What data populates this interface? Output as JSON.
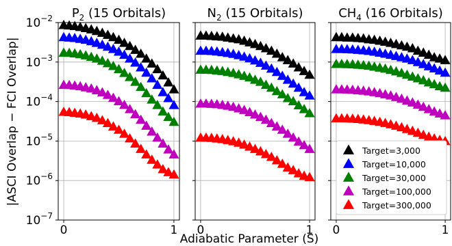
{
  "chart_data": {
    "type": "scatter",
    "ylabel": "|ASCI Overlap − FCI Overlap|",
    "xlabel": "Adiabatic Parameter (S)",
    "yscale": "log",
    "ylim": [
      1e-07,
      0.01
    ],
    "xlim": [
      -0.05,
      1.05
    ],
    "ytick_labels": [
      {
        "base": "10",
        "exp": "−2"
      },
      {
        "base": "10",
        "exp": "−3"
      },
      {
        "base": "10",
        "exp": "−4"
      },
      {
        "base": "10",
        "exp": "−5"
      },
      {
        "base": "10",
        "exp": "−6"
      },
      {
        "base": "10",
        "exp": "−7"
      }
    ],
    "ytick_values": [
      0.01,
      0.001,
      0.0001,
      1e-05,
      1e-06,
      1e-07
    ],
    "xtick_labels": [
      "0",
      "1"
    ],
    "xtick_values": [
      0,
      1
    ],
    "grid": true,
    "marker": "triangle",
    "legend": {
      "location": "lower-right of third panel",
      "entries": [
        {
          "label": "Target=3,000",
          "color": "#000000"
        },
        {
          "label": "Target=10,000",
          "color": "#0000ff"
        },
        {
          "label": "Target=30,000",
          "color": "#008000"
        },
        {
          "label": "Target=100,000",
          "color": "#bf00bf"
        },
        {
          "label": "Target=300,000",
          "color": "#ff0000"
        }
      ]
    },
    "x": [
      0,
      0.05,
      0.1,
      0.15,
      0.2,
      0.25,
      0.3,
      0.35,
      0.4,
      0.45,
      0.5,
      0.55,
      0.6,
      0.65,
      0.7,
      0.75,
      0.8,
      0.85,
      0.9,
      0.95,
      1.0
    ],
    "panels": [
      {
        "title": {
          "pre": "P",
          "sub": "2",
          "post": " (15 Orbitals)"
        },
        "series": [
          {
            "name": "Target=3,000",
            "values": [
              0.0085,
              0.0083,
              0.008,
              0.0076,
              0.0071,
              0.0066,
              0.006,
              0.0054,
              0.0048,
              0.0042,
              0.0036,
              0.003,
              0.0025,
              0.002,
              0.0016,
              0.0012,
              0.0009,
              0.00065,
              0.00045,
              0.0003,
              0.0002
            ]
          },
          {
            "name": "Target=10,000",
            "values": [
              0.0042,
              0.0041,
              0.004,
              0.0038,
              0.0036,
              0.0033,
              0.003,
              0.0027,
              0.0024,
              0.0021,
              0.0018,
              0.0015,
              0.0012,
              0.00095,
              0.00072,
              0.00053,
              0.00038,
              0.00026,
              0.00017,
              0.00012,
              8e-05
            ]
          },
          {
            "name": "Target=30,000",
            "values": [
              0.0017,
              0.00168,
              0.00163,
              0.00155,
              0.00145,
              0.00133,
              0.0012,
              0.00106,
              0.00092,
              0.00078,
              0.00065,
              0.00052,
              0.00041,
              0.00031,
              0.00023,
              0.00016,
              0.00011,
              8e-05,
              5.5e-05,
              4e-05,
              3e-05
            ]
          },
          {
            "name": "Target=100,000",
            "values": [
              0.00026,
              0.000258,
              0.00025,
              0.00024,
              0.000225,
              0.00021,
              0.00019,
              0.000168,
              0.000145,
              0.000122,
              0.0001,
              8.1e-05,
              6.3e-05,
              4.7e-05,
              3.4e-05,
              2.4e-05,
              1.7e-05,
              1.2e-05,
              8.5e-06,
              6e-06,
              4.5e-06
            ]
          },
          {
            "name": "Target=300,000",
            "values": [
              5.4e-05,
              5.3e-05,
              5.1e-05,
              4.9e-05,
              4.6e-05,
              4.2e-05,
              3.8e-05,
              3.3e-05,
              2.8e-05,
              2.3e-05,
              1.9e-05,
              1.5e-05,
              1.15e-05,
              8.5e-06,
              6.2e-06,
              4.5e-06,
              3.3e-06,
              2.5e-06,
              1.9e-06,
              1.6e-06,
              1.4e-06
            ]
          }
        ]
      },
      {
        "title": {
          "pre": "N",
          "sub": "2",
          "post": " (15 Orbitals)"
        },
        "series": [
          {
            "name": "Target=3,000",
            "values": [
              0.0046,
              0.0046,
              0.0045,
              0.0044,
              0.0043,
              0.0041,
              0.0039,
              0.0037,
              0.0034,
              0.0031,
              0.0028,
              0.0025,
              0.0022,
              0.0019,
              0.0016,
              0.0013,
              0.0011,
              0.0009,
              0.00072,
              0.00058,
              0.00047
            ]
          },
          {
            "name": "Target=10,000",
            "values": [
              0.0019,
              0.0019,
              0.00187,
              0.00182,
              0.00175,
              0.00167,
              0.00158,
              0.00147,
              0.00135,
              0.00122,
              0.00108,
              0.00094,
              0.0008,
              0.00067,
              0.00055,
              0.00044,
              0.00035,
              0.00028,
              0.00022,
              0.00017,
              0.00014
            ]
          },
          {
            "name": "Target=30,000",
            "values": [
              0.00063,
              0.00063,
              0.00062,
              0.0006,
              0.00058,
              0.00055,
              0.00052,
              0.00048,
              0.00044,
              0.0004,
              0.00035,
              0.00031,
              0.00026,
              0.00022,
              0.00018,
              0.00015,
              0.00012,
              0.0001,
              7.9e-05,
              6.3e-05,
              5e-05
            ]
          },
          {
            "name": "Target=100,000",
            "values": [
              8.7e-05,
              8.7e-05,
              8.6e-05,
              8.4e-05,
              8.1e-05,
              7.7e-05,
              7.2e-05,
              6.6e-05,
              6e-05,
              5.3e-05,
              4.6e-05,
              4e-05,
              3.4e-05,
              2.8e-05,
              2.3e-05,
              1.9e-05,
              1.5e-05,
              1.2e-05,
              9.5e-06,
              7.7e-06,
              6.2e-06
            ]
          },
          {
            "name": "Target=300,000",
            "values": [
              1.2e-05,
              1.2e-05,
              1.18e-05,
              1.14e-05,
              1.1e-05,
              1.04e-05,
              9.7e-06,
              8.9e-06,
              8e-06,
              7.1e-06,
              6.2e-06,
              5.4e-06,
              4.6e-06,
              3.9e-06,
              3.2e-06,
              2.6e-06,
              2.1e-06,
              1.8e-06,
              1.5e-06,
              1.3e-06,
              1.2e-06
            ]
          }
        ]
      },
      {
        "title": {
          "pre": "CH",
          "sub": "4",
          "post": " (16 Orbitals)"
        },
        "series": [
          {
            "name": "Target=3,000",
            "values": [
              0.0042,
              0.0042,
              0.0041,
              0.0041,
              0.004,
              0.0039,
              0.0037,
              0.0036,
              0.0034,
              0.0032,
              0.003,
              0.0028,
              0.0026,
              0.0024,
              0.0022,
              0.0019,
              0.0017,
              0.0015,
              0.0013,
              0.0012,
              0.0011
            ]
          },
          {
            "name": "Target=10,000",
            "values": [
              0.0021,
              0.0021,
              0.00208,
              0.00205,
              0.002,
              0.00195,
              0.00188,
              0.0018,
              0.0017,
              0.0016,
              0.0015,
              0.0014,
              0.0013,
              0.0012,
              0.0011,
              0.00098,
              0.00087,
              0.00077,
              0.00068,
              0.0006,
              0.00053
            ]
          },
          {
            "name": "Target=30,000",
            "values": [
              0.00088,
              0.00088,
              0.00087,
              0.00086,
              0.00084,
              0.00082,
              0.00079,
              0.00075,
              0.00071,
              0.00067,
              0.00062,
              0.00057,
              0.00052,
              0.00047,
              0.00042,
              0.00038,
              0.00034,
              0.0003,
              0.00027,
              0.00024,
              0.00022
            ]
          },
          {
            "name": "Target=100,000",
            "values": [
              0.0002,
              0.0002,
              0.000198,
              0.000195,
              0.00019,
              0.000185,
              0.000178,
              0.00017,
              0.00016,
              0.00015,
              0.00014,
              0.000128,
              0.000116,
              0.000104,
              9.3e-05,
              8.2e-05,
              7.2e-05,
              6.3e-05,
              5.5e-05,
              4.9e-05,
              4.4e-05
            ]
          },
          {
            "name": "Target=300,000",
            "values": [
              3.7e-05,
              3.7e-05,
              3.68e-05,
              3.63e-05,
              3.55e-05,
              3.45e-05,
              3.32e-05,
              3.17e-05,
              3e-05,
              2.81e-05,
              2.61e-05,
              2.4e-05,
              2.19e-05,
              1.98e-05,
              1.78e-05,
              1.59e-05,
              1.41e-05,
              1.26e-05,
              1.14e-05,
              1.05e-05,
              9.8e-06
            ]
          }
        ]
      }
    ]
  }
}
